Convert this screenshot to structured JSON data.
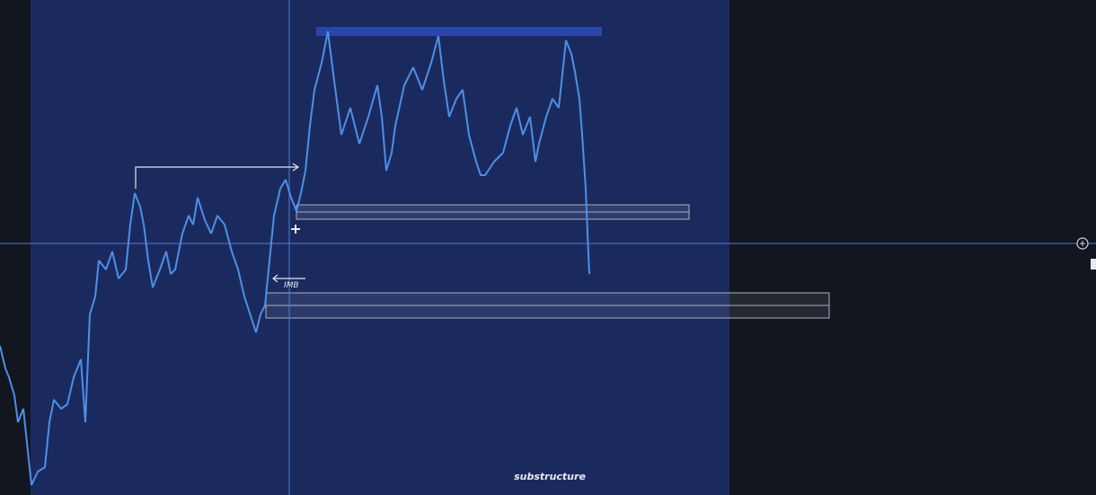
{
  "annotations": {
    "imbalance": "IMB",
    "zone_label": "substructure"
  }
}
